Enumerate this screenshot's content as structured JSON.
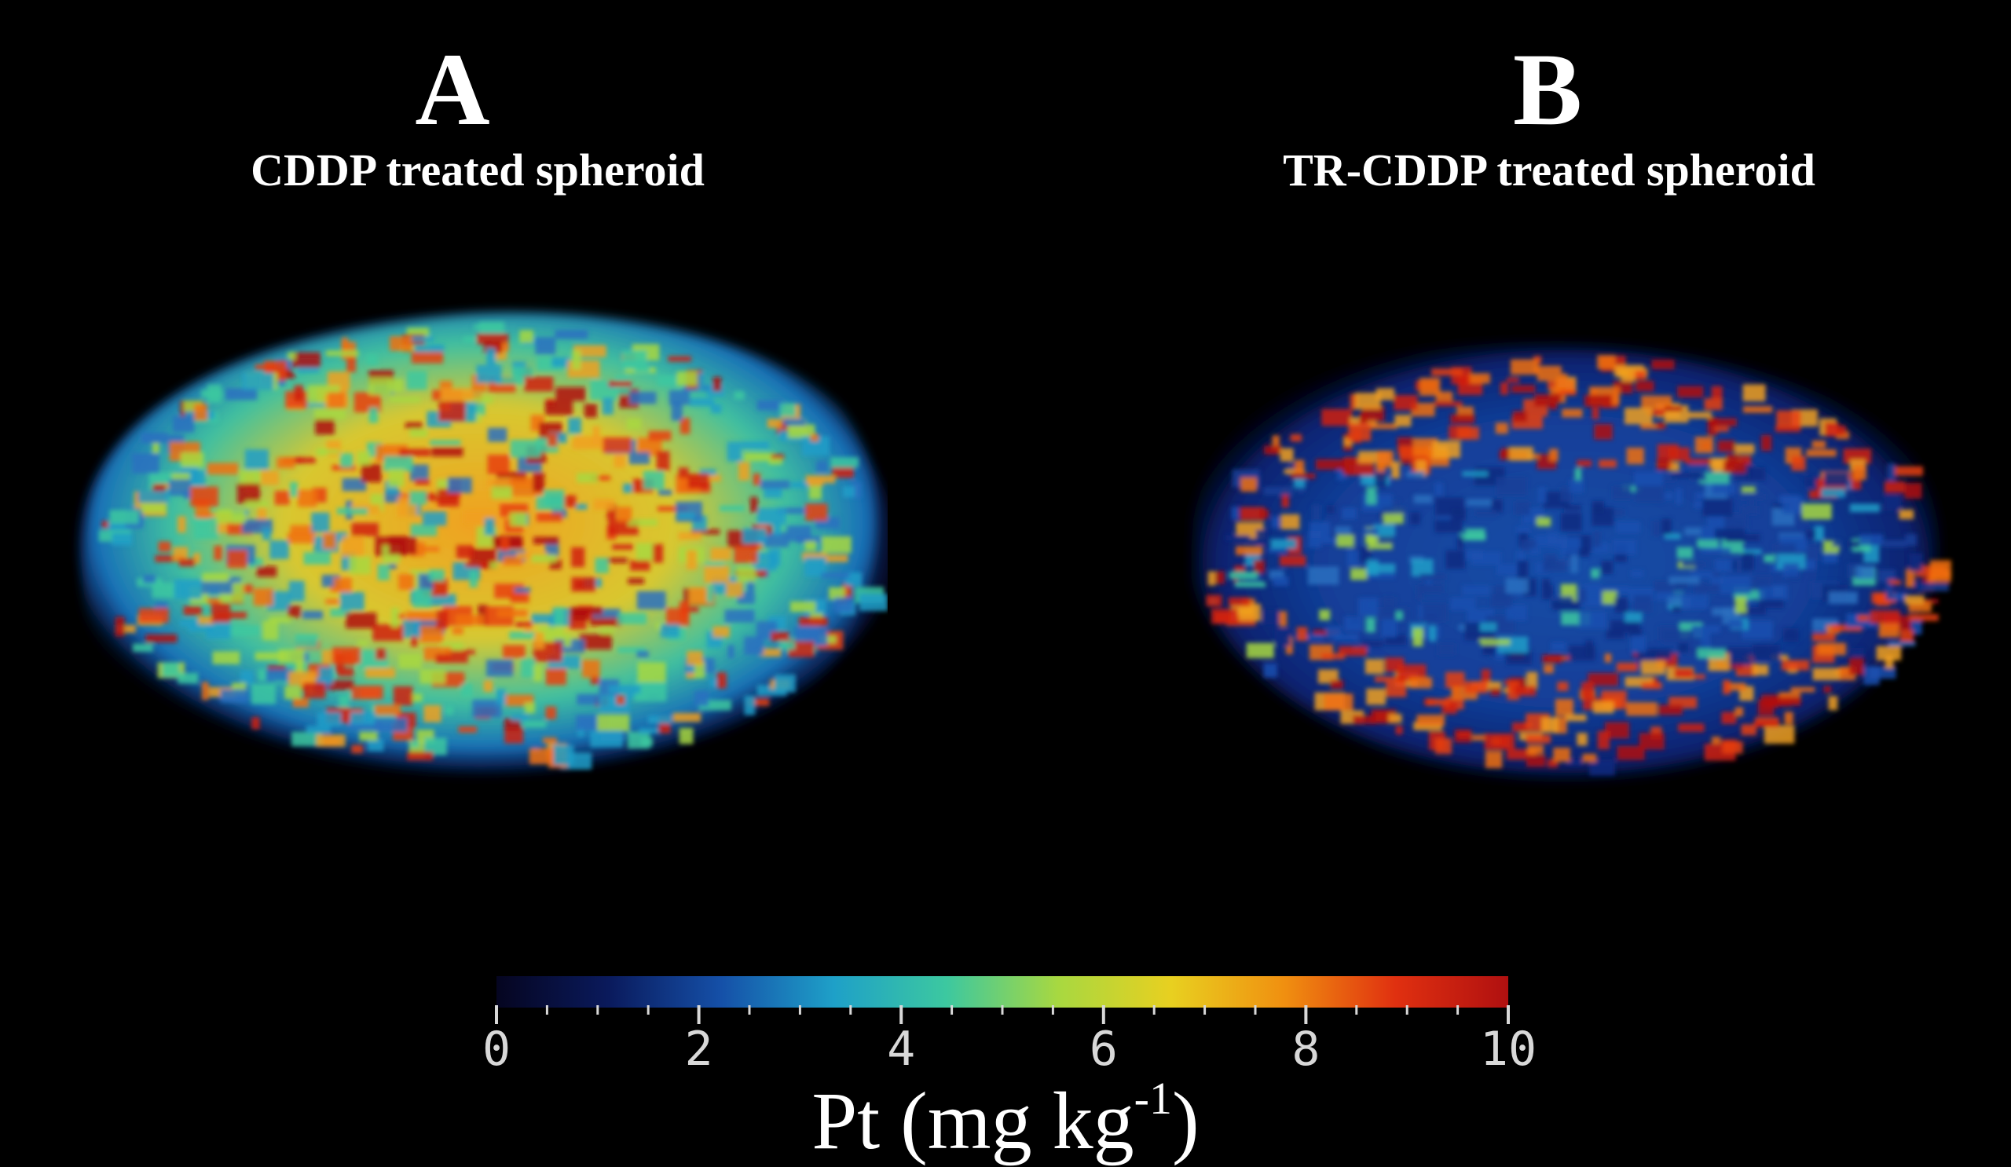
{
  "panels": [
    {
      "letter": "A",
      "title": "CDDP treated spheroid"
    },
    {
      "letter": "B",
      "title": "TR-CDDP treated spheroid"
    }
  ],
  "colorbar": {
    "min": 0,
    "max": 10,
    "tick_labels": [
      "0",
      "2",
      "4",
      "6",
      "8",
      "10"
    ],
    "label_main": "Pt (mg kg",
    "label_exp": "-1",
    "label_close": ")",
    "colormap": [
      "#050520",
      "#0a1a5c",
      "#1550a8",
      "#1ea0c8",
      "#3cc8a0",
      "#a8d840",
      "#e8d020",
      "#f09010",
      "#e03010",
      "#b01010"
    ]
  },
  "colors": {
    "background": "#000000",
    "text": "#ffffff",
    "tick_text": "#d8d8d8"
  }
}
